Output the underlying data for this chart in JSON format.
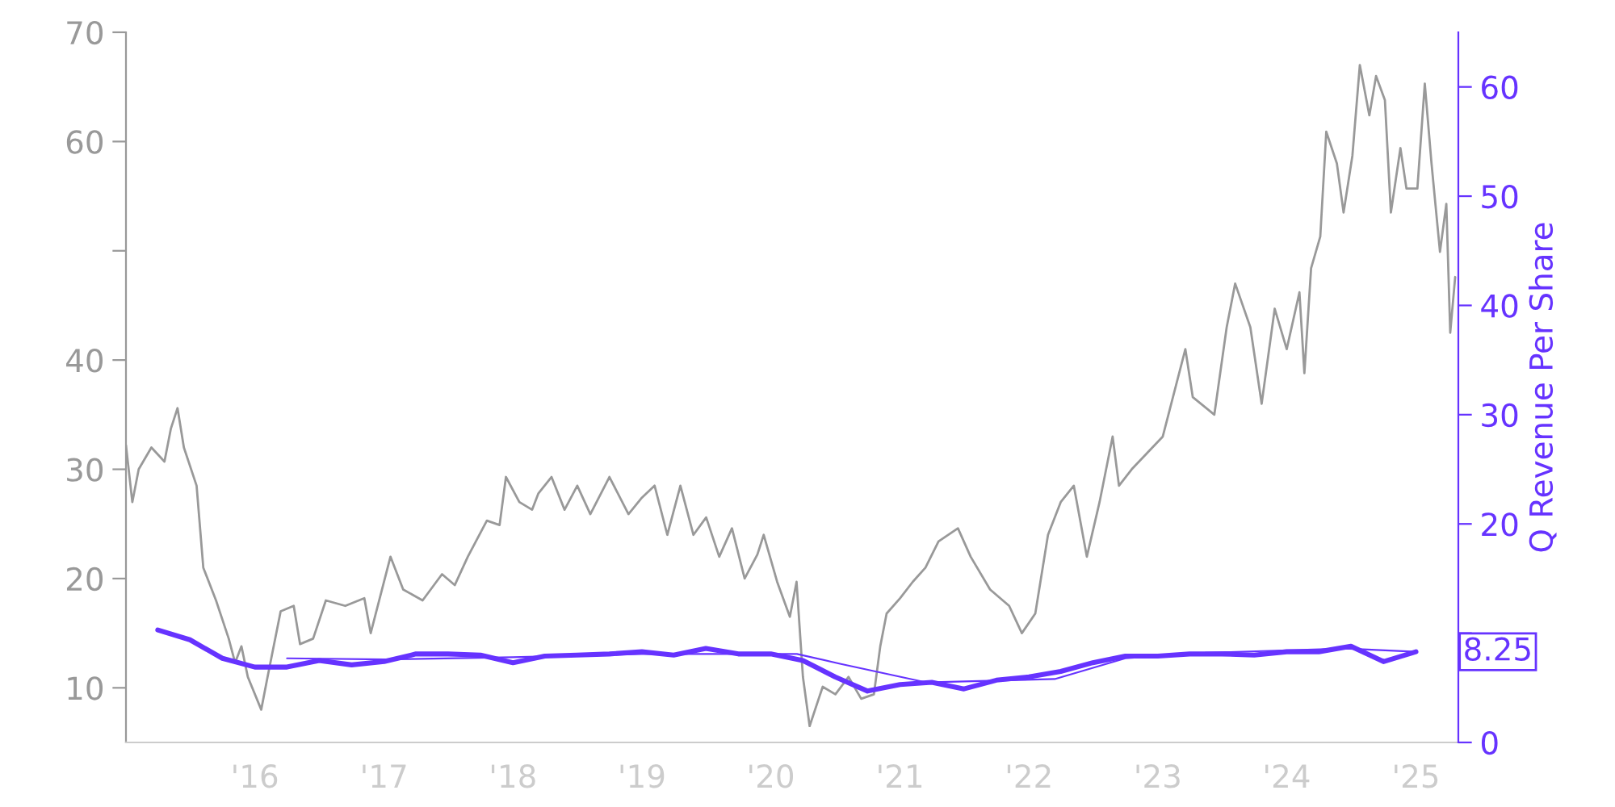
{
  "chart_data": {
    "type": "line",
    "ylabel": null,
    "y2label": "Q Revenue Per Share",
    "series": [
      {
        "color": "#999999",
        "axis": "y",
        "x": [
          "2015-01-01",
          "2015-01-19",
          "2015-02-06",
          "2015-03-14",
          "2015-04-20",
          "2015-05-08",
          "2015-05-27",
          "2015-06-14",
          "2015-07-20",
          "2015-08-08",
          "2015-09-13",
          "2015-10-19",
          "2015-11-06",
          "2015-11-24",
          "2015-12-12",
          "2016-01-19",
          "2016-02-06",
          "2016-03-14",
          "2016-04-20",
          "2016-05-08",
          "2016-06-14",
          "2016-07-20",
          "2016-09-13",
          "2016-11-06",
          "2016-11-24",
          "2017-01-19",
          "2017-02-24",
          "2017-04-20",
          "2017-06-14",
          "2017-07-20",
          "2017-08-26",
          "2017-10-19",
          "2017-11-24",
          "2017-12-12",
          "2018-01-19",
          "2018-02-24",
          "2018-03-14",
          "2018-04-20",
          "2018-05-27",
          "2018-07-02",
          "2018-08-08",
          "2018-10-01",
          "2018-11-24",
          "2019-01-01",
          "2019-02-06",
          "2019-03-14",
          "2019-04-20",
          "2019-05-27",
          "2019-07-02",
          "2019-08-08",
          "2019-09-13",
          "2019-10-19",
          "2019-11-24",
          "2019-12-12",
          "2020-01-19",
          "2020-02-24",
          "2020-03-14",
          "2020-04-01",
          "2020-04-20",
          "2020-05-27",
          "2020-07-02",
          "2020-08-08",
          "2020-09-13",
          "2020-10-19",
          "2020-11-06",
          "2020-11-24",
          "2021-01-01",
          "2021-02-06",
          "2021-03-14",
          "2021-04-20",
          "2021-06-14",
          "2021-07-20",
          "2021-09-13",
          "2021-11-06",
          "2021-12-12",
          "2022-01-19",
          "2022-02-24",
          "2022-04-01",
          "2022-05-08",
          "2022-06-14",
          "2022-07-20",
          "2022-08-26",
          "2022-09-13",
          "2022-10-19",
          "2023-01-15",
          "2023-03-20",
          "2023-04-10",
          "2023-06-10",
          "2023-07-15",
          "2023-08-08",
          "2023-09-20",
          "2023-10-22",
          "2023-11-28",
          "2024-01-01",
          "2024-02-06",
          "2024-02-20",
          "2024-03-10",
          "2024-04-05",
          "2024-04-22",
          "2024-05-22",
          "2024-06-10",
          "2024-07-05",
          "2024-07-26",
          "2024-08-22",
          "2024-09-10",
          "2024-10-05",
          "2024-10-22",
          "2024-11-18",
          "2024-12-05",
          "2025-01-05",
          "2025-01-26",
          "2025-02-14",
          "2025-03-10",
          "2025-03-28",
          "2025-04-08",
          "2025-04-22"
        ],
        "values": [
          32.2,
          27,
          30,
          32,
          30.7,
          33.7,
          35.6,
          32,
          28.5,
          21,
          18,
          14.5,
          12.3,
          13.8,
          11,
          8,
          11,
          17,
          17.5,
          14,
          14.5,
          18,
          17.5,
          18.2,
          15,
          22,
          19,
          18,
          20.4,
          19.4,
          22,
          25.3,
          24.9,
          29.3,
          27,
          26.3,
          27.8,
          29.3,
          26.3,
          28.5,
          25.9,
          29.3,
          25.9,
          27.4,
          28.5,
          24,
          28.5,
          24,
          25.6,
          22,
          24.6,
          20,
          22.2,
          24,
          19.7,
          16.5,
          19.7,
          11,
          6.5,
          10.1,
          9.4,
          11,
          9,
          9.4,
          13.8,
          16.8,
          18.2,
          19.7,
          21,
          23.4,
          24.6,
          22,
          19,
          17.5,
          15,
          16.8,
          24,
          27,
          28.5,
          22,
          27,
          33,
          28.5,
          30,
          33,
          41,
          36.6,
          35,
          43,
          47,
          43,
          36,
          44.7,
          41,
          46.2,
          38.8,
          48.4,
          51.3,
          60.9,
          58,
          53.5,
          58.7,
          67,
          62.4,
          66,
          63.8,
          53.5,
          59.4,
          55.7,
          55.7,
          65.3,
          58,
          49.9,
          54.3,
          42.5,
          47.6
        ]
      },
      {
        "color": "#6633ff",
        "axis": "y2",
        "x": [
          "2015-04-01",
          "2015-07-01",
          "2015-10-01",
          "2016-01-01",
          "2016-04-01",
          "2016-07-01",
          "2016-10-01",
          "2017-01-01",
          "2017-04-01",
          "2017-07-01",
          "2017-10-01",
          "2018-01-01",
          "2018-04-01",
          "2018-07-01",
          "2018-10-01",
          "2019-01-01",
          "2019-04-01",
          "2019-07-01",
          "2019-10-01",
          "2020-01-01",
          "2020-04-01",
          "2020-07-01",
          "2020-10-01",
          "2021-01-01",
          "2021-04-01",
          "2021-07-01",
          "2021-10-01",
          "2022-01-01",
          "2022-04-01",
          "2022-07-01",
          "2022-10-01",
          "2023-01-01",
          "2023-04-01",
          "2023-07-01",
          "2023-10-01",
          "2024-01-01",
          "2024-04-01",
          "2024-07-01",
          "2024-10-01",
          "2025-01-01"
        ],
        "values": [
          10.3,
          9.4,
          7.7,
          6.9,
          6.9,
          7.5,
          7.1,
          7.4,
          8.1,
          8.1,
          8.0,
          7.3,
          7.9,
          8.0,
          8.1,
          8.3,
          8.0,
          8.6,
          8.1,
          8.1,
          7.5,
          6.0,
          4.7,
          5.3,
          5.5,
          4.9,
          5.7,
          6.0,
          6.5,
          7.3,
          7.9,
          7.9,
          8.1,
          8.1,
          8.0,
          8.3,
          8.3,
          8.8,
          7.4,
          8.3
        ]
      },
      {
        "color": "#6633ff",
        "axis": "y2",
        "x": [
          "2016-04-01",
          "2017-01-01",
          "2018-01-01",
          "2019-01-01",
          "2020-03-15",
          "2020-07-15",
          "2021-03-15",
          "2022-03-15",
          "2022-10-01",
          "2023-05-15",
          "2024-06-15",
          "2025-01-01"
        ],
        "values": [
          7.7,
          7.6,
          7.8,
          8.1,
          8.1,
          7.2,
          5.5,
          5.8,
          7.7,
          8.2,
          8.6,
          8.3
        ]
      }
    ],
    "xlim": [
      "2015-01-01",
      "2025-05-01"
    ],
    "xticks": [
      {
        "value": "2016-01-01",
        "label": "'16"
      },
      {
        "value": "2017-01-01",
        "label": "'17"
      },
      {
        "value": "2018-01-01",
        "label": "'18"
      },
      {
        "value": "2019-01-01",
        "label": "'19"
      },
      {
        "value": "2020-01-01",
        "label": "'20"
      },
      {
        "value": "2021-01-01",
        "label": "'21"
      },
      {
        "value": "2022-01-01",
        "label": "'22"
      },
      {
        "value": "2023-01-01",
        "label": "'23"
      },
      {
        "value": "2024-01-01",
        "label": "'24"
      },
      {
        "value": "2025-01-01",
        "label": "'25"
      }
    ],
    "ylim": [
      5,
      70
    ],
    "yticks": [
      10,
      20,
      30,
      40,
      {
        "value": 50,
        "label": null
      },
      60,
      70
    ],
    "y2lim": [
      0,
      65
    ],
    "y2ticks": [
      0,
      {
        "value": 10,
        "label": null
      },
      20,
      30,
      40,
      50,
      60
    ],
    "annotations": [
      "8.25"
    ],
    "grid": false,
    "legend": false
  }
}
